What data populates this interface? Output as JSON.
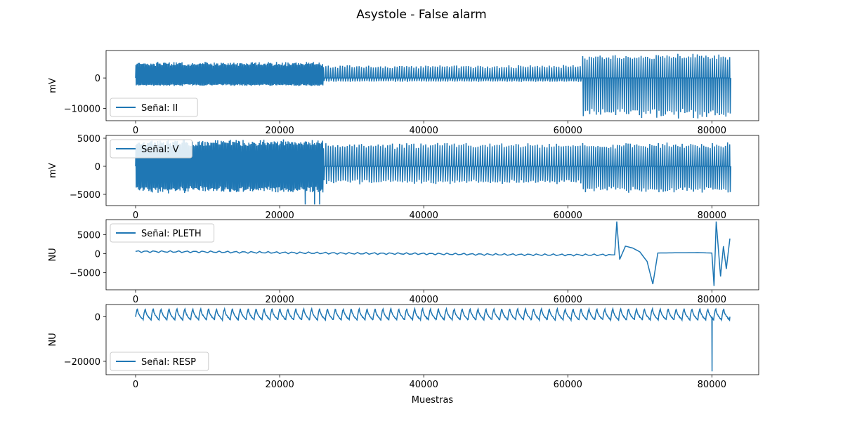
{
  "title": "Asystole - False alarm",
  "chart_data": [
    {
      "type": "line",
      "series": [
        {
          "name": "Señal: II",
          "color": "#1f77b4"
        }
      ],
      "ylabel": "mV",
      "xlabel": "",
      "xlim": [
        -4100,
        86500
      ],
      "ylim": [
        -14000,
        9000
      ],
      "xticks": [
        0,
        20000,
        40000,
        60000,
        80000
      ],
      "xtick_labels": [
        "0",
        "20000",
        "40000",
        "60000",
        "80000"
      ],
      "yticks": [
        0,
        -10000
      ],
      "ytick_labels": [
        "0",
        "−10000"
      ],
      "legend": "lower-left",
      "segments": [
        {
          "x0": 0,
          "x1": 26000,
          "max": 5000,
          "min": -2500
        },
        {
          "x0": 26000,
          "x1": 62000,
          "max": 4000,
          "min": -1200
        },
        {
          "x0": 62000,
          "x1": 82500,
          "max": 7500,
          "min": -12500
        }
      ]
    },
    {
      "type": "line",
      "series": [
        {
          "name": "Señal: V",
          "color": "#1f77b4"
        }
      ],
      "ylabel": "mV",
      "xlabel": "",
      "xlim": [
        -4100,
        86500
      ],
      "ylim": [
        -7000,
        5500
      ],
      "xticks": [
        0,
        20000,
        40000,
        60000,
        80000
      ],
      "xtick_labels": [
        "0",
        "20000",
        "40000",
        "60000",
        "80000"
      ],
      "yticks": [
        5000,
        0,
        -5000
      ],
      "ytick_labels": [
        "5000",
        "0",
        "−5000"
      ],
      "legend": "upper-left",
      "segments": [
        {
          "x0": 0,
          "x1": 26000,
          "max": 4500,
          "min": -4500
        },
        {
          "x0": 26000,
          "x1": 62000,
          "max": 4000,
          "min": -3000
        },
        {
          "x0": 62000,
          "x1": 82500,
          "max": 4000,
          "min": -4500
        }
      ]
    },
    {
      "type": "line",
      "series": [
        {
          "name": "Señal: PLETH",
          "color": "#1f77b4"
        }
      ],
      "ylabel": "NU",
      "xlabel": "",
      "xlim": [
        -4100,
        86500
      ],
      "ylim": [
        -9500,
        9000
      ],
      "xticks": [
        0,
        20000,
        40000,
        60000,
        80000
      ],
      "xtick_labels": [
        "0",
        "20000",
        "40000",
        "60000",
        "80000"
      ],
      "yticks": [
        5000,
        0,
        -5000
      ],
      "ytick_labels": [
        "5000",
        "0",
        "−5000"
      ],
      "legend": "upper-left",
      "points": [
        [
          0,
          600
        ],
        [
          10000,
          500
        ],
        [
          20000,
          300
        ],
        [
          30000,
          100
        ],
        [
          40000,
          0
        ],
        [
          50000,
          -200
        ],
        [
          60000,
          -300
        ],
        [
          66500,
          -300
        ],
        [
          66800,
          8500
        ],
        [
          67200,
          -1500
        ],
        [
          68000,
          2000
        ],
        [
          69000,
          1500
        ],
        [
          70000,
          500
        ],
        [
          71000,
          -2000
        ],
        [
          71800,
          -8000
        ],
        [
          72500,
          200
        ],
        [
          78000,
          300
        ],
        [
          80000,
          200
        ],
        [
          80300,
          -8500
        ],
        [
          80600,
          8500
        ],
        [
          81200,
          -6000
        ],
        [
          81600,
          2000
        ],
        [
          82000,
          -4000
        ],
        [
          82500,
          4000
        ]
      ]
    },
    {
      "type": "line",
      "series": [
        {
          "name": "Señal: RESP",
          "color": "#1f77b4"
        }
      ],
      "ylabel": "NU",
      "xlabel": "Muestras",
      "xlim": [
        -4100,
        86500
      ],
      "ylim": [
        -26000,
        5500
      ],
      "xticks": [
        0,
        20000,
        40000,
        60000,
        80000
      ],
      "xtick_labels": [
        "0",
        "20000",
        "40000",
        "60000",
        "80000"
      ],
      "yticks": [
        0,
        -20000
      ],
      "ytick_labels": [
        "0",
        "−20000"
      ],
      "legend": "lower-left",
      "breath_period": 1100,
      "breath_min": -1500,
      "breath_max": 3500,
      "spike": {
        "x": 80000,
        "min": -24500
      }
    }
  ]
}
